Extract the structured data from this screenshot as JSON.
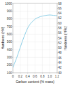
{
  "chart_data": {
    "type": "line",
    "xlabel": "Carbon content (% mass)",
    "ylabel": "Hardness (HV)",
    "y2label": "Hardness (HRc)",
    "x": [
      0.0,
      0.05,
      0.1,
      0.15,
      0.2,
      0.25,
      0.3,
      0.35,
      0.4,
      0.45,
      0.5,
      0.55,
      0.6,
      0.65,
      0.7,
      0.75,
      0.8,
      0.85,
      0.9,
      0.95,
      1.0,
      1.05,
      1.1,
      1.15,
      1.2
    ],
    "values": [
      170,
      230,
      290,
      360,
      430,
      500,
      565,
      625,
      680,
      720,
      750,
      775,
      795,
      810,
      820,
      830,
      835,
      840,
      845,
      848,
      850,
      848,
      845,
      843,
      840
    ],
    "color": "#7ec8e3",
    "xlim": [
      0,
      1.2
    ],
    "ylim": [
      100,
      1000
    ],
    "y2lim": [
      40,
      68
    ],
    "xticks": [
      0,
      0.2,
      0.4,
      0.6,
      0.8,
      {
        "value": 1.0,
        "label": "1.0"
      },
      1.2
    ],
    "yticks": [
      100,
      200,
      300,
      400,
      500,
      600,
      700,
      800,
      900,
      1000
    ],
    "y2ticks": [
      40,
      42,
      44,
      46,
      48,
      50,
      52,
      54,
      56,
      58,
      60,
      62,
      64,
      66,
      68
    ],
    "grid": true
  }
}
